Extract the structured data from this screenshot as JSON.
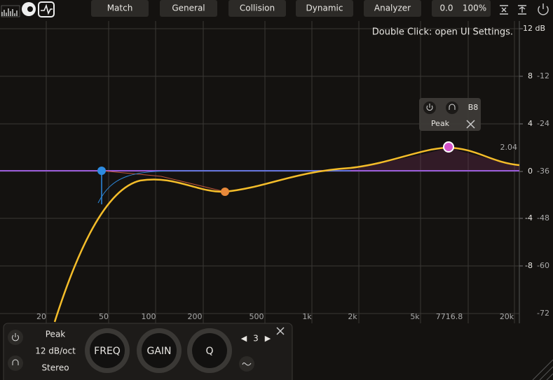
{
  "tabs": [
    "Match",
    "General",
    "Collision",
    "Dynamic",
    "Analyzer"
  ],
  "status": {
    "output": "0.0",
    "mix": "100%"
  },
  "hint": "Double Click: open UI Settings.",
  "gain_axis": [
    "12 dB",
    "8",
    "4",
    "0",
    "-4",
    "-8"
  ],
  "analyzer_axis": [
    "-12",
    "-24",
    "-36",
    "-48",
    "-60",
    "-72"
  ],
  "freq_axis": [
    "20",
    "50",
    "100",
    "200",
    "500",
    "1k",
    "2k",
    "5k",
    "7716.8",
    "20k"
  ],
  "band_popup": {
    "id": "B8",
    "shape": "Peak"
  },
  "band_gain_label": "2.04",
  "band_panel": {
    "shape": "Peak",
    "slope": "12 dB/oct",
    "stereo": "Stereo",
    "knobs": [
      "FREQ",
      "GAIN",
      "Q"
    ],
    "band_index": "3"
  }
}
